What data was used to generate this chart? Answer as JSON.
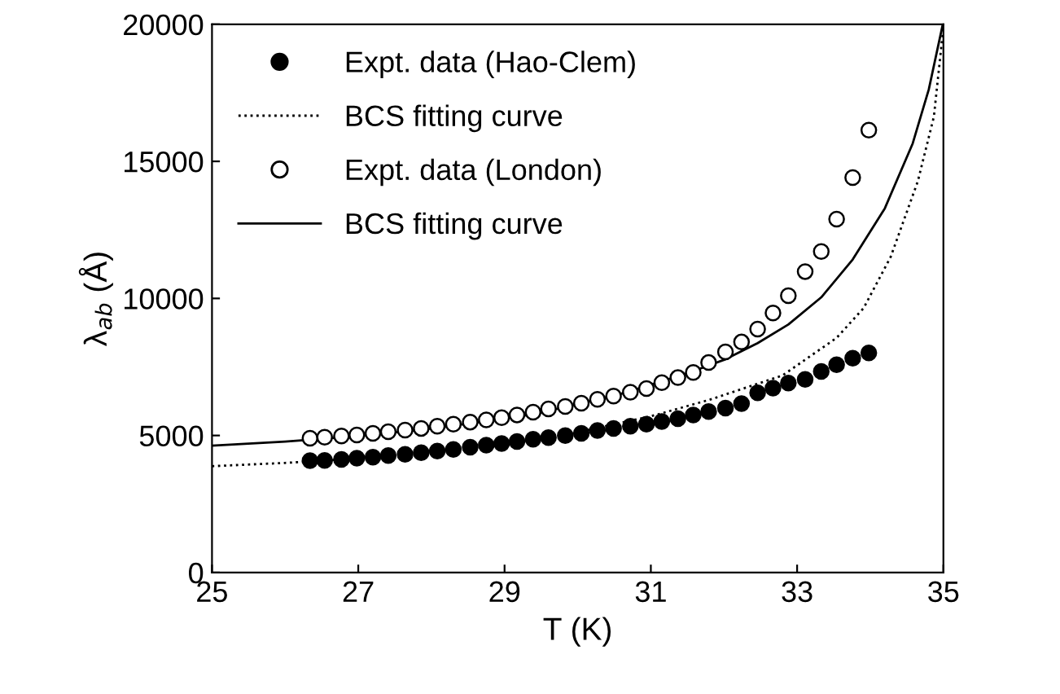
{
  "chart_data": {
    "type": "scatter",
    "xlabel": "T (K)",
    "ylabel": "λ$_{ab}$ (Å)",
    "xlim": [
      25,
      35
    ],
    "xticks": [
      25,
      27,
      29,
      31,
      33,
      35
    ],
    "ylim": [
      0,
      20000
    ],
    "yticks": [
      0,
      5000,
      10000,
      15000,
      20000
    ],
    "grid": false,
    "legend": "top left",
    "series": [
      {
        "name": "Expt. data (Hao-Clem)",
        "marker": "circle",
        "color": "#000000",
        "x": [
          26.34,
          26.54,
          26.77,
          26.98,
          27.2,
          27.41,
          27.64,
          27.86,
          28.08,
          28.3,
          28.53,
          28.75,
          28.96,
          29.17,
          29.39,
          29.6,
          29.83,
          30.05,
          30.27,
          30.49,
          30.72,
          30.94,
          31.15,
          31.37,
          31.58,
          31.79,
          32.02,
          32.24,
          32.46,
          32.67,
          32.88,
          33.11,
          33.33,
          33.54,
          33.76,
          33.98
        ],
        "values": [
          4080,
          4090,
          4130,
          4170,
          4210,
          4270,
          4310,
          4370,
          4430,
          4490,
          4570,
          4650,
          4710,
          4780,
          4860,
          4920,
          5000,
          5080,
          5180,
          5260,
          5340,
          5410,
          5510,
          5610,
          5750,
          5870,
          6000,
          6160,
          6560,
          6730,
          6910,
          7050,
          7340,
          7580,
          7820,
          8010
        ]
      },
      {
        "name": "BCS fitting curve",
        "type": "line",
        "line_style": "dotted",
        "marker": "none",
        "color": "#000000",
        "x": [
          25,
          26,
          27,
          28,
          29,
          30,
          31,
          31.8,
          32.8,
          33.54,
          33.91,
          34.28,
          34.65,
          34.87,
          35
        ],
        "values": [
          3880,
          4000,
          4160,
          4400,
          4750,
          5120,
          5700,
          6300,
          7190,
          8560,
          9650,
          11520,
          14270,
          16630,
          19900
        ]
      },
      {
        "name": "Expt. data (London)",
        "marker": "circle",
        "color": "#ffffff",
        "x": [
          26.34,
          26.54,
          26.77,
          26.98,
          27.2,
          27.41,
          27.64,
          27.86,
          28.08,
          28.3,
          28.53,
          28.75,
          28.96,
          29.17,
          29.39,
          29.6,
          29.83,
          30.05,
          30.27,
          30.49,
          30.72,
          30.94,
          31.15,
          31.37,
          31.58,
          31.79,
          32.02,
          32.24,
          32.46,
          32.67,
          32.88,
          33.11,
          33.33,
          33.54,
          33.76,
          33.98
        ],
        "values": [
          4900,
          4940,
          4980,
          5020,
          5080,
          5140,
          5200,
          5260,
          5340,
          5410,
          5490,
          5570,
          5650,
          5750,
          5850,
          5970,
          6060,
          6180,
          6320,
          6440,
          6580,
          6710,
          6930,
          7110,
          7300,
          7660,
          8050,
          8410,
          8880,
          9470,
          10100,
          10980,
          11710,
          12890,
          14410,
          16140
        ]
      },
      {
        "name": "BCS fitting curve",
        "type": "line",
        "line_style": "solid",
        "marker": "none",
        "color": "#000000",
        "x": [
          25,
          26,
          27,
          28,
          29,
          29.45,
          30,
          30.57,
          31,
          31.53,
          32.02,
          32.46,
          32.88,
          33.33,
          33.76,
          34.2,
          34.58,
          34.8,
          34.99
        ],
        "values": [
          4630,
          4780,
          4980,
          5250,
          5620,
          5800,
          6150,
          6500,
          6850,
          7300,
          7780,
          8370,
          9050,
          10040,
          11420,
          13290,
          15650,
          17620,
          19980
        ]
      }
    ]
  }
}
